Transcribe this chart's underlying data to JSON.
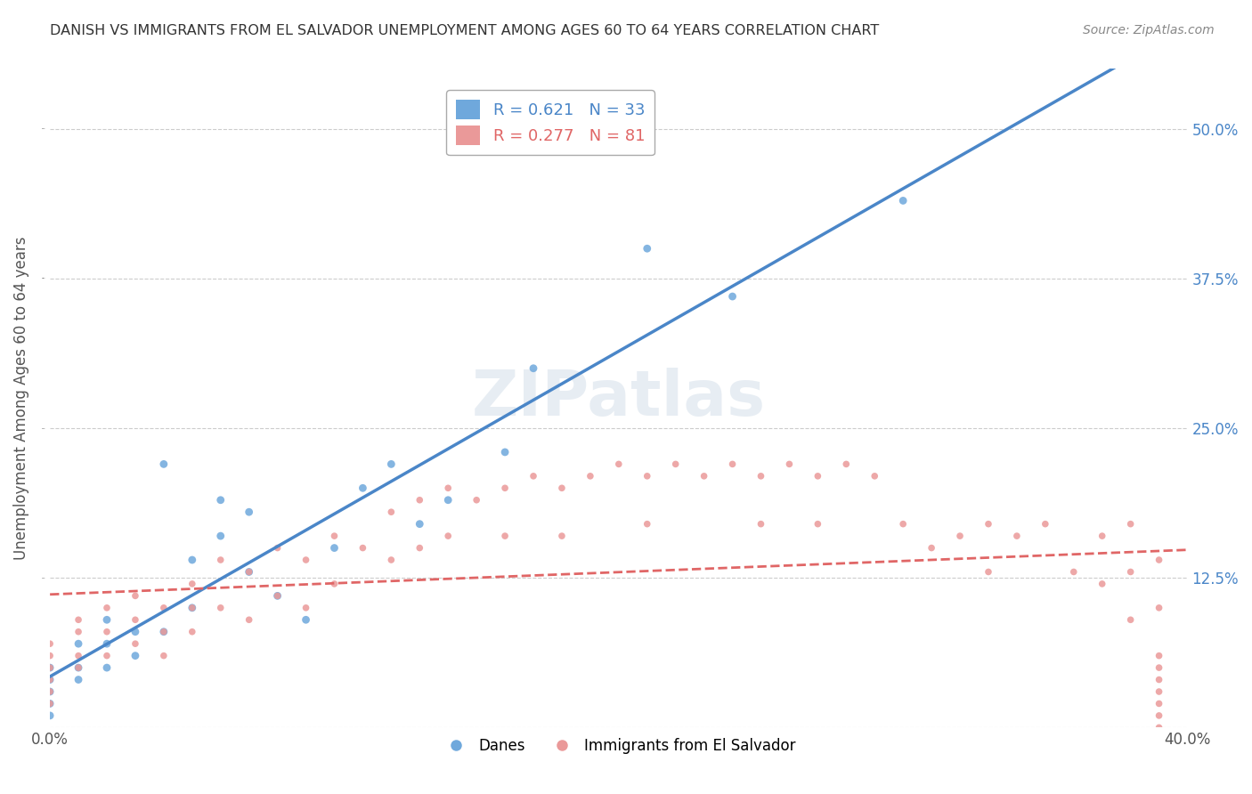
{
  "title": "DANISH VS IMMIGRANTS FROM EL SALVADOR UNEMPLOYMENT AMONG AGES 60 TO 64 YEARS CORRELATION CHART",
  "source": "Source: ZipAtlas.com",
  "xlabel": "",
  "ylabel": "Unemployment Among Ages 60 to 64 years",
  "xlim": [
    0.0,
    0.4
  ],
  "ylim": [
    0.0,
    0.55
  ],
  "x_ticks": [
    0.0,
    0.4
  ],
  "x_tick_labels": [
    "0.0%",
    "40.0%"
  ],
  "y_tick_positions": [
    0.0,
    0.125,
    0.25,
    0.375,
    0.5
  ],
  "y_tick_labels": [
    "",
    "12.5%",
    "25.0%",
    "37.5%",
    "50.0%"
  ],
  "danes_R": 0.621,
  "danes_N": 33,
  "salvador_R": 0.277,
  "salvador_N": 81,
  "danes_color": "#6fa8dc",
  "salvador_color": "#ea9999",
  "danes_line_color": "#4a86c8",
  "salvador_line_color": "#e06666",
  "watermark": "ZIPatlas",
  "danes_scatter_x": [
    0.0,
    0.0,
    0.0,
    0.0,
    0.0,
    0.01,
    0.01,
    0.01,
    0.02,
    0.02,
    0.02,
    0.03,
    0.03,
    0.04,
    0.04,
    0.05,
    0.05,
    0.06,
    0.06,
    0.07,
    0.07,
    0.08,
    0.09,
    0.1,
    0.11,
    0.12,
    0.13,
    0.14,
    0.16,
    0.17,
    0.21,
    0.24,
    0.3
  ],
  "danes_scatter_y": [
    0.05,
    0.04,
    0.03,
    0.02,
    0.01,
    0.07,
    0.05,
    0.04,
    0.09,
    0.07,
    0.05,
    0.08,
    0.06,
    0.22,
    0.08,
    0.14,
    0.1,
    0.19,
    0.16,
    0.18,
    0.13,
    0.11,
    0.09,
    0.15,
    0.2,
    0.22,
    0.17,
    0.19,
    0.23,
    0.3,
    0.4,
    0.36,
    0.44
  ],
  "salvador_scatter_x": [
    0.0,
    0.0,
    0.0,
    0.0,
    0.0,
    0.0,
    0.01,
    0.01,
    0.01,
    0.01,
    0.02,
    0.02,
    0.02,
    0.03,
    0.03,
    0.03,
    0.04,
    0.04,
    0.04,
    0.05,
    0.05,
    0.05,
    0.06,
    0.06,
    0.07,
    0.07,
    0.08,
    0.08,
    0.09,
    0.09,
    0.1,
    0.1,
    0.11,
    0.12,
    0.12,
    0.13,
    0.13,
    0.14,
    0.14,
    0.15,
    0.16,
    0.16,
    0.17,
    0.18,
    0.18,
    0.19,
    0.2,
    0.21,
    0.21,
    0.22,
    0.23,
    0.24,
    0.25,
    0.25,
    0.26,
    0.27,
    0.27,
    0.28,
    0.29,
    0.3,
    0.31,
    0.32,
    0.33,
    0.33,
    0.34,
    0.35,
    0.36,
    0.37,
    0.37,
    0.38,
    0.38,
    0.38,
    0.39,
    0.39,
    0.39,
    0.39,
    0.39,
    0.39,
    0.39,
    0.39,
    0.39
  ],
  "salvador_scatter_y": [
    0.07,
    0.06,
    0.05,
    0.04,
    0.03,
    0.02,
    0.09,
    0.08,
    0.06,
    0.05,
    0.1,
    0.08,
    0.06,
    0.11,
    0.09,
    0.07,
    0.1,
    0.08,
    0.06,
    0.12,
    0.1,
    0.08,
    0.14,
    0.1,
    0.13,
    0.09,
    0.15,
    0.11,
    0.14,
    0.1,
    0.16,
    0.12,
    0.15,
    0.18,
    0.14,
    0.19,
    0.15,
    0.2,
    0.16,
    0.19,
    0.2,
    0.16,
    0.21,
    0.2,
    0.16,
    0.21,
    0.22,
    0.21,
    0.17,
    0.22,
    0.21,
    0.22,
    0.21,
    0.17,
    0.22,
    0.21,
    0.17,
    0.22,
    0.21,
    0.17,
    0.15,
    0.16,
    0.17,
    0.13,
    0.16,
    0.17,
    0.13,
    0.16,
    0.12,
    0.17,
    0.13,
    0.09,
    0.14,
    0.1,
    0.06,
    0.05,
    0.04,
    0.03,
    0.02,
    0.01,
    0.0
  ]
}
